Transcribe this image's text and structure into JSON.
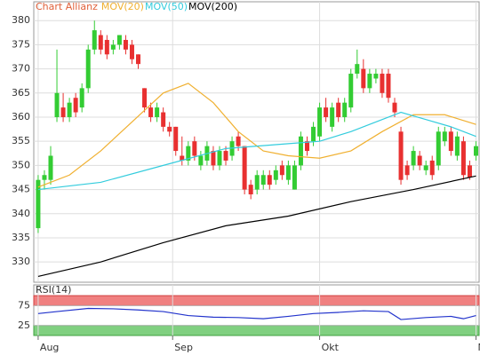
{
  "chart_data": {
    "type": "candlestick",
    "title": "Chart Allianz",
    "title_color": "#e0603a",
    "candles": [
      [
        337,
        348,
        336,
        347
      ],
      [
        347,
        349,
        345,
        348
      ],
      [
        347,
        354,
        346,
        352
      ],
      [
        360,
        374,
        359,
        365
      ],
      [
        362,
        365,
        359,
        360
      ],
      [
        360,
        364,
        359,
        363
      ],
      [
        364,
        365,
        360,
        361
      ],
      [
        362,
        367,
        361,
        366
      ],
      [
        366,
        375,
        365,
        374
      ],
      [
        374,
        380,
        373,
        378
      ],
      [
        377,
        378,
        373,
        374
      ],
      [
        376,
        377,
        372,
        373
      ],
      [
        374,
        376,
        373,
        375
      ],
      [
        375,
        377,
        374,
        377
      ],
      [
        376,
        377,
        373,
        374
      ],
      [
        375,
        376,
        371,
        372
      ],
      [
        373,
        373,
        370,
        371
      ],
      [
        366,
        366,
        361,
        362
      ],
      [
        362,
        363,
        359,
        360
      ],
      [
        360,
        363,
        359,
        362
      ],
      [
        361,
        362,
        357,
        358
      ],
      [
        358,
        359,
        356,
        357
      ],
      [
        358,
        358,
        352,
        353
      ],
      [
        352,
        356,
        350,
        351
      ],
      [
        351,
        355,
        350,
        354
      ],
      [
        355,
        356,
        351,
        352
      ],
      [
        350,
        353,
        349,
        352
      ],
      [
        351,
        355,
        350,
        354
      ],
      [
        353,
        354,
        349,
        350
      ],
      [
        350,
        354,
        349,
        353
      ],
      [
        353,
        354,
        350,
        351
      ],
      [
        352,
        356,
        351,
        355
      ],
      [
        356,
        357,
        353,
        354
      ],
      [
        354,
        354,
        344,
        345
      ],
      [
        346,
        347,
        343,
        344
      ],
      [
        345,
        349,
        344,
        348
      ],
      [
        346,
        349,
        345,
        348
      ],
      [
        348,
        349,
        345,
        346
      ],
      [
        347,
        350,
        346,
        349
      ],
      [
        350,
        351,
        347,
        348
      ],
      [
        347,
        351,
        346,
        350
      ],
      [
        345,
        351,
        345,
        350
      ],
      [
        350,
        357,
        349,
        356
      ],
      [
        355,
        356,
        352,
        353
      ],
      [
        355,
        359,
        354,
        358
      ],
      [
        356,
        363,
        355,
        362
      ],
      [
        362,
        364,
        359,
        360
      ],
      [
        358,
        363,
        357,
        362
      ],
      [
        363,
        364,
        359,
        360
      ],
      [
        360,
        364,
        359,
        363
      ],
      [
        362,
        370,
        361,
        369
      ],
      [
        369,
        374,
        368,
        371
      ],
      [
        370,
        372,
        365,
        366
      ],
      [
        366,
        370,
        365,
        369
      ],
      [
        368,
        370,
        367,
        369
      ],
      [
        369,
        370,
        364,
        365
      ],
      [
        369,
        370,
        363,
        364
      ],
      [
        363,
        364,
        360,
        361
      ],
      [
        357,
        358,
        346,
        347
      ],
      [
        350,
        351,
        347,
        348
      ],
      [
        350,
        354,
        349,
        353
      ],
      [
        352,
        353,
        349,
        350
      ],
      [
        349,
        351,
        348,
        350
      ],
      [
        351,
        352,
        347,
        348
      ],
      [
        350,
        358,
        349,
        357
      ],
      [
        355,
        358,
        354,
        357
      ],
      [
        357,
        358,
        352,
        353
      ],
      [
        352,
        357,
        351,
        356
      ],
      [
        355,
        356,
        347,
        348
      ],
      [
        350,
        351,
        347,
        347.5
      ],
      [
        352,
        355,
        351,
        354
      ]
    ],
    "up_color": "#33cc33",
    "down_color": "#e83030",
    "xlim": [
      -0.7,
      70.5
    ],
    "xticks": [
      {
        "value": 0,
        "label": "Aug"
      },
      {
        "value": 21.5,
        "label": "Sep"
      },
      {
        "value": 45,
        "label": "Okt"
      },
      {
        "value": 70,
        "label": "N"
      }
    ],
    "ylim": [
      325.8,
      383.9
    ],
    "yticks": [
      330,
      335,
      340,
      345,
      350,
      355,
      360,
      365,
      370,
      375,
      380
    ],
    "grid": true,
    "series": [
      {
        "name": "MOV(20)",
        "color": "#f0b030",
        "x": [
          0,
          5,
          10,
          15,
          20,
          24,
          28,
          32,
          36,
          40,
          45,
          50,
          55,
          60,
          65,
          70
        ],
        "values": [
          345.5,
          348,
          353,
          359,
          365,
          367,
          363,
          357,
          353,
          352,
          351.5,
          353,
          357,
          360.5,
          360.5,
          358.5
        ]
      },
      {
        "name": "MOV(50)",
        "color": "#33ccdd",
        "x": [
          0,
          10,
          20,
          30,
          40,
          45,
          50,
          55,
          58,
          62,
          66,
          70
        ],
        "values": [
          345,
          346.5,
          350,
          353.5,
          354.5,
          355,
          357,
          359.5,
          361,
          359.5,
          358,
          356
        ]
      },
      {
        "name": "MOV(200)",
        "color": "#000000",
        "x": [
          0,
          10,
          20,
          30,
          40,
          50,
          60,
          70
        ],
        "values": [
          327,
          330,
          334,
          337.5,
          339.5,
          342.5,
          345,
          347.8
        ]
      }
    ],
    "rsi": {
      "name": "RSI(14)",
      "color": "#2233cc",
      "ylim": [
        0,
        127
      ],
      "yticks": [
        25,
        75
      ],
      "overbought": [
        75,
        100
      ],
      "oversold": [
        0,
        25
      ],
      "x": [
        0,
        3,
        8,
        12,
        16,
        20,
        24,
        28,
        32,
        36,
        40,
        44,
        48,
        52,
        56,
        58,
        62,
        66,
        68,
        70
      ],
      "values": [
        55,
        60,
        68,
        67,
        64,
        60,
        50,
        46,
        45,
        42,
        48,
        55,
        58,
        62,
        60,
        40,
        45,
        48,
        42,
        50
      ]
    }
  }
}
